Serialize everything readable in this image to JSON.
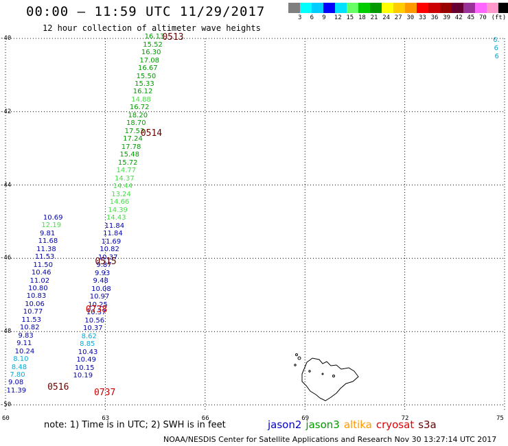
{
  "header": {
    "title": "00:00 – 11:59 UTC 11/29/2017",
    "subtitle": "12 hour collection of altimeter wave heights"
  },
  "legend": {
    "colors": [
      "#7f7f7f",
      "#00ffff",
      "#00ccff",
      "#0000ff",
      "#00e0ff",
      "#66ff66",
      "#00cc00",
      "#009900",
      "#ffff00",
      "#ffcc00",
      "#ff9900",
      "#ff0000",
      "#cc0000",
      "#990000",
      "#660033",
      "#993399",
      "#ff66ff",
      "#ff99cc",
      "#000000"
    ],
    "ticks": [
      "3",
      "6",
      "9",
      "12",
      "15",
      "18",
      "21",
      "24",
      "27",
      "30",
      "33",
      "36",
      "39",
      "42",
      "45",
      "70",
      "(ft)"
    ]
  },
  "axes": {
    "lat_ticks": [
      "-40",
      "-42",
      "-44",
      "-46",
      "-48",
      "-50"
    ],
    "lon_ticks": [
      "60",
      "63",
      "66",
      "69",
      "72",
      "75"
    ]
  },
  "colors": {
    "jason2": "#0000aa",
    "jason3": "#009900",
    "jason3_light": "#44dd44",
    "altika": "#ff9900",
    "cryosat": "#cc0000",
    "s3a": "#660000",
    "cyan": "#00aadd"
  },
  "observations": [
    {
      "v": "16.13",
      "lon": 64.45,
      "lat": -39.97,
      "c": "jason3"
    },
    {
      "v": "15.52",
      "lon": 64.4,
      "lat": -40.18,
      "c": "jason3"
    },
    {
      "v": "16.30",
      "lon": 64.35,
      "lat": -40.4,
      "c": "jason3"
    },
    {
      "v": "17.08",
      "lon": 64.3,
      "lat": -40.61,
      "c": "jason3"
    },
    {
      "v": "16.67",
      "lon": 64.25,
      "lat": -40.83,
      "c": "jason3"
    },
    {
      "v": "15.50",
      "lon": 64.2,
      "lat": -41.04,
      "c": "jason3"
    },
    {
      "v": "15.33",
      "lon": 64.15,
      "lat": -41.26,
      "c": "jason3"
    },
    {
      "v": "16.12",
      "lon": 64.1,
      "lat": -41.47,
      "c": "jason3"
    },
    {
      "v": "14.88",
      "lon": 64.05,
      "lat": -41.69,
      "c": "jason3_light"
    },
    {
      "v": "16.72",
      "lon": 64.0,
      "lat": -41.9,
      "c": "jason3"
    },
    {
      "v": "18.20",
      "lon": 63.95,
      "lat": -42.12,
      "c": "jason3"
    },
    {
      "v": "18.70",
      "lon": 63.9,
      "lat": -42.33,
      "c": "jason3"
    },
    {
      "v": "17.53",
      "lon": 63.85,
      "lat": -42.55,
      "c": "jason3"
    },
    {
      "v": "17.24",
      "lon": 63.8,
      "lat": -42.76,
      "c": "jason3"
    },
    {
      "v": "17.78",
      "lon": 63.75,
      "lat": -42.98,
      "c": "jason3"
    },
    {
      "v": "15.48",
      "lon": 63.7,
      "lat": -43.19,
      "c": "jason3"
    },
    {
      "v": "15.72",
      "lon": 63.65,
      "lat": -43.41,
      "c": "jason3"
    },
    {
      "v": "14.77",
      "lon": 63.6,
      "lat": -43.62,
      "c": "jason3_light"
    },
    {
      "v": "14.37",
      "lon": 63.55,
      "lat": -43.84,
      "c": "jason3_light"
    },
    {
      "v": "14.44",
      "lon": 63.5,
      "lat": -44.05,
      "c": "jason3_light"
    },
    {
      "v": "13.24",
      "lon": 63.45,
      "lat": -44.27,
      "c": "jason3_light"
    },
    {
      "v": "14.66",
      "lon": 63.4,
      "lat": -44.48,
      "c": "jason3_light"
    },
    {
      "v": "14.39",
      "lon": 63.35,
      "lat": -44.7,
      "c": "jason3_light"
    },
    {
      "v": "14.43",
      "lon": 63.3,
      "lat": -44.91,
      "c": "jason3_light"
    },
    {
      "v": "11.84",
      "lon": 63.25,
      "lat": -45.13,
      "c": "jason2"
    },
    {
      "v": "11.84",
      "lon": 63.2,
      "lat": -45.34,
      "c": "jason2"
    },
    {
      "v": "11.69",
      "lon": 63.15,
      "lat": -45.56,
      "c": "jason2"
    },
    {
      "v": "10.82",
      "lon": 63.1,
      "lat": -45.77,
      "c": "jason2"
    },
    {
      "v": "10.37",
      "lon": 63.05,
      "lat": -45.99,
      "c": "jason2"
    },
    {
      "v": "9.87",
      "lon": 63.0,
      "lat": -46.2,
      "c": "jason2"
    },
    {
      "v": "9.93",
      "lon": 62.95,
      "lat": -46.42,
      "c": "jason2"
    },
    {
      "v": "9.48",
      "lon": 62.9,
      "lat": -46.63,
      "c": "jason2"
    },
    {
      "v": "10.08",
      "lon": 62.85,
      "lat": -46.85,
      "c": "jason2"
    },
    {
      "v": "10.97",
      "lon": 62.8,
      "lat": -47.06,
      "c": "jason2"
    },
    {
      "v": "10.25",
      "lon": 62.75,
      "lat": -47.28,
      "c": "jason2"
    },
    {
      "v": "10.37",
      "lon": 62.7,
      "lat": -47.49,
      "c": "jason2"
    },
    {
      "v": "10.56",
      "lon": 62.65,
      "lat": -47.71,
      "c": "jason2"
    },
    {
      "v": "10.37",
      "lon": 62.6,
      "lat": -47.92,
      "c": "jason2"
    },
    {
      "v": "8.62",
      "lon": 62.55,
      "lat": -48.14,
      "c": "cyan"
    },
    {
      "v": "8.85",
      "lon": 62.5,
      "lat": -48.35,
      "c": "cyan"
    },
    {
      "v": "10.43",
      "lon": 62.45,
      "lat": -48.57,
      "c": "jason2"
    },
    {
      "v": "10.49",
      "lon": 62.4,
      "lat": -48.78,
      "c": "jason2"
    },
    {
      "v": "10.15",
      "lon": 62.35,
      "lat": -49.0,
      "c": "jason2"
    },
    {
      "v": "10.19",
      "lon": 62.3,
      "lat": -49.21,
      "c": "jason2"
    },
    {
      "v": "10.69",
      "lon": 61.4,
      "lat": -44.9,
      "c": "jason2"
    },
    {
      "v": "12.19",
      "lon": 61.35,
      "lat": -45.11,
      "c": "jason3_light"
    },
    {
      "v": "9.81",
      "lon": 61.3,
      "lat": -45.33,
      "c": "jason2"
    },
    {
      "v": "11.68",
      "lon": 61.25,
      "lat": -45.54,
      "c": "jason2"
    },
    {
      "v": "11.38",
      "lon": 61.2,
      "lat": -45.76,
      "c": "jason2"
    },
    {
      "v": "11.53",
      "lon": 61.15,
      "lat": -45.97,
      "c": "jason2"
    },
    {
      "v": "11.50",
      "lon": 61.1,
      "lat": -46.19,
      "c": "jason2"
    },
    {
      "v": "10.46",
      "lon": 61.05,
      "lat": -46.4,
      "c": "jason2"
    },
    {
      "v": "11.02",
      "lon": 61.0,
      "lat": -46.62,
      "c": "jason2"
    },
    {
      "v": "10.80",
      "lon": 60.95,
      "lat": -46.83,
      "c": "jason2"
    },
    {
      "v": "10.83",
      "lon": 60.9,
      "lat": -47.05,
      "c": "jason2"
    },
    {
      "v": "10.06",
      "lon": 60.85,
      "lat": -47.26,
      "c": "jason2"
    },
    {
      "v": "10.77",
      "lon": 60.8,
      "lat": -47.48,
      "c": "jason2"
    },
    {
      "v": "11.53",
      "lon": 60.75,
      "lat": -47.69,
      "c": "jason2"
    },
    {
      "v": "10.82",
      "lon": 60.7,
      "lat": -47.91,
      "c": "jason2"
    },
    {
      "v": "9.83",
      "lon": 60.65,
      "lat": -48.12,
      "c": "jason2"
    },
    {
      "v": "9.11",
      "lon": 60.6,
      "lat": -48.34,
      "c": "jason2"
    },
    {
      "v": "10.24",
      "lon": 60.55,
      "lat": -48.55,
      "c": "jason2"
    },
    {
      "v": "8.10",
      "lon": 60.5,
      "lat": -48.77,
      "c": "cyan"
    },
    {
      "v": "8.48",
      "lon": 60.45,
      "lat": -48.98,
      "c": "cyan"
    },
    {
      "v": "7.80",
      "lon": 60.4,
      "lat": -49.2,
      "c": "cyan"
    },
    {
      "v": "9.08",
      "lon": 60.35,
      "lat": -49.41,
      "c": "jason2"
    },
    {
      "v": "11.39",
      "lon": 60.3,
      "lat": -49.63,
      "c": "jason2"
    },
    {
      "v": "6.",
      "lon": 74.92,
      "lat": -40.05,
      "c": "cyan"
    },
    {
      "v": "6",
      "lon": 74.95,
      "lat": -40.28,
      "c": "cyan"
    },
    {
      "v": "6",
      "lon": 74.97,
      "lat": -40.5,
      "c": "cyan"
    }
  ],
  "times": [
    {
      "t": "0513",
      "lon": 65.0,
      "lat": -39.97,
      "c": "s3a"
    },
    {
      "t": "0514",
      "lon": 64.35,
      "lat": -42.58,
      "c": "s3a"
    },
    {
      "t": "0515",
      "lon": 62.98,
      "lat": -46.09,
      "c": "s3a"
    },
    {
      "t": "0738",
      "lon": 62.7,
      "lat": -47.39,
      "c": "cryosat"
    },
    {
      "t": "0516",
      "lon": 61.55,
      "lat": -49.52,
      "c": "s3a"
    },
    {
      "t": "0737",
      "lon": 62.95,
      "lat": -49.66,
      "c": "cryosat"
    }
  ],
  "footer": {
    "note": "note: 1) Time is in UTC; 2) SWH is in feet",
    "satellites": [
      {
        "name": "jason2",
        "color": "#0000cc"
      },
      {
        "name": "jason3",
        "color": "#009900"
      },
      {
        "name": "altika",
        "color": "#ff9900"
      },
      {
        "name": "cryosat",
        "color": "#dd0000"
      },
      {
        "name": "s3a",
        "color": "#660000"
      }
    ],
    "credit": "NOAA/NESDIS Center for Satellite Applications and Research     Nov 30 13:27:14 UTC 2017"
  }
}
